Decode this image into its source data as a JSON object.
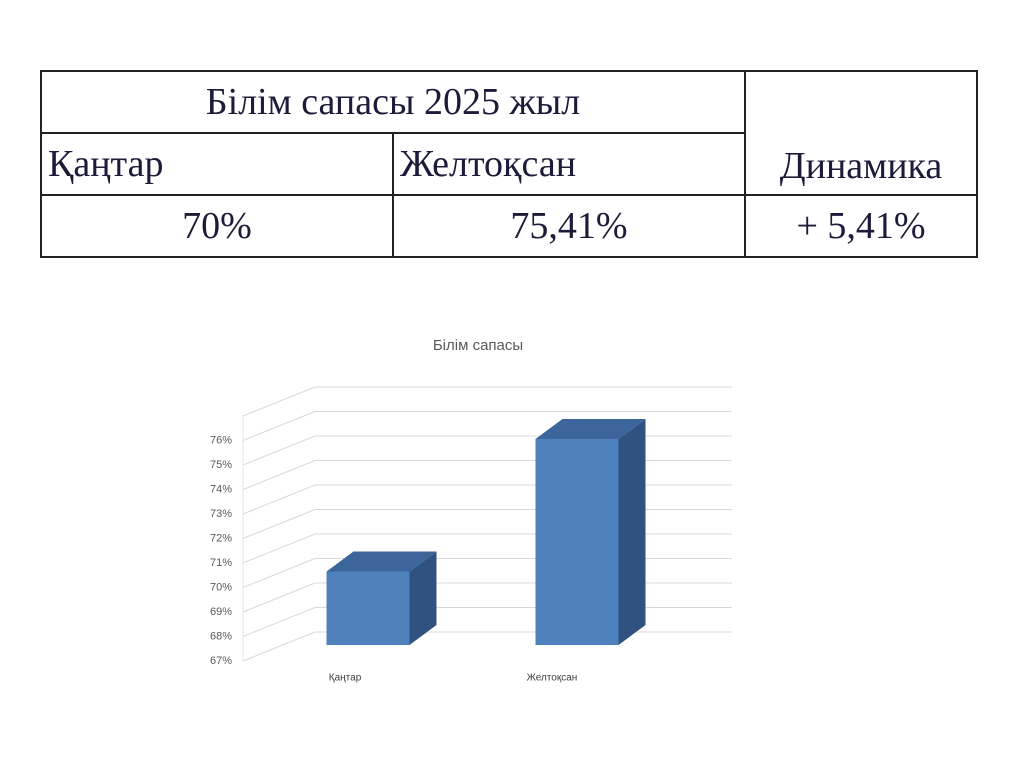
{
  "table": {
    "title": "Білім сапасы 2025 жыл",
    "headers": [
      "Қаңтар",
      "Желтоқсан",
      "Динамика"
    ],
    "rows": [
      [
        "70%",
        "75,41%",
        "+ 5,41%"
      ]
    ]
  },
  "chart_data": {
    "type": "bar",
    "title": "Білім сапасы",
    "categories": [
      "Қаңтар",
      "Желтоқсан"
    ],
    "values": [
      70,
      75.41
    ],
    "color": "#4f81bd",
    "ylim": [
      67,
      77
    ],
    "yticks": [
      {
        "value": 67,
        "label": "67%"
      },
      {
        "value": 68,
        "label": "68%"
      },
      {
        "value": 69,
        "label": "69%"
      },
      {
        "value": 70,
        "label": "70%"
      },
      {
        "value": 71,
        "label": "71%"
      },
      {
        "value": 72,
        "label": "72%"
      },
      {
        "value": 73,
        "label": "73%"
      },
      {
        "value": 74,
        "label": "74%"
      },
      {
        "value": 75,
        "label": "75%"
      },
      {
        "value": 76,
        "label": "76%"
      }
    ],
    "grid": true
  }
}
